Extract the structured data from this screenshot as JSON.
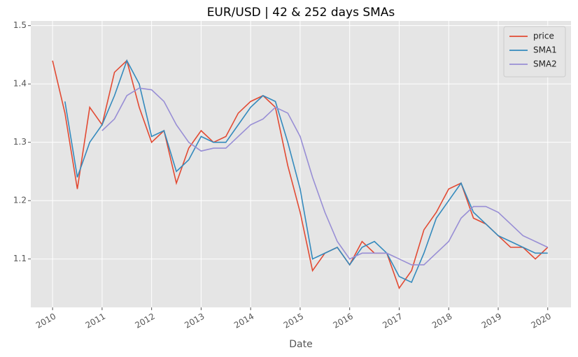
{
  "chart_data": {
    "type": "line",
    "title": "EUR/USD | 42 & 252 days SMAs",
    "xlabel": "Date",
    "x": [
      2010,
      2010.25,
      2010.5,
      2010.75,
      2011,
      2011.25,
      2011.5,
      2011.75,
      2012,
      2012.25,
      2012.5,
      2012.75,
      2013,
      2013.25,
      2013.5,
      2013.75,
      2014,
      2014.25,
      2014.5,
      2014.75,
      2015,
      2015.25,
      2015.5,
      2015.75,
      2016,
      2016.25,
      2016.5,
      2016.75,
      2017,
      2017.25,
      2017.5,
      2017.75,
      2018,
      2018.25,
      2018.5,
      2018.75,
      2019,
      2019.25,
      2019.5,
      2019.75,
      2020
    ],
    "series": [
      {
        "name": "price",
        "color": "#e24a33",
        "values": [
          1.44,
          1.35,
          1.22,
          1.36,
          1.33,
          1.42,
          1.44,
          1.36,
          1.3,
          1.32,
          1.23,
          1.29,
          1.32,
          1.3,
          1.31,
          1.35,
          1.37,
          1.38,
          1.36,
          1.26,
          1.18,
          1.08,
          1.11,
          1.12,
          1.09,
          1.13,
          1.11,
          1.11,
          1.05,
          1.08,
          1.15,
          1.18,
          1.22,
          1.23,
          1.17,
          1.16,
          1.14,
          1.12,
          1.12,
          1.1,
          1.12
        ]
      },
      {
        "name": "SMA1",
        "color": "#348abd",
        "values": [
          null,
          1.37,
          1.24,
          1.3,
          1.33,
          1.38,
          1.44,
          1.4,
          1.31,
          1.32,
          1.25,
          1.27,
          1.31,
          1.3,
          1.3,
          1.33,
          1.36,
          1.38,
          1.37,
          1.3,
          1.22,
          1.1,
          1.11,
          1.12,
          1.09,
          1.12,
          1.13,
          1.11,
          1.07,
          1.06,
          1.11,
          1.17,
          1.2,
          1.23,
          1.18,
          1.16,
          1.14,
          1.13,
          1.12,
          1.11,
          1.11
        ]
      },
      {
        "name": "SMA2",
        "color": "#988ed5",
        "values": [
          null,
          null,
          null,
          null,
          1.32,
          1.34,
          1.38,
          1.393,
          1.39,
          1.37,
          1.33,
          1.3,
          1.285,
          1.29,
          1.29,
          1.31,
          1.33,
          1.34,
          1.36,
          1.35,
          1.31,
          1.24,
          1.18,
          1.13,
          1.1,
          1.11,
          1.11,
          1.11,
          1.1,
          1.09,
          1.09,
          1.11,
          1.13,
          1.17,
          1.19,
          1.19,
          1.18,
          1.16,
          1.14,
          1.13,
          1.12
        ]
      }
    ],
    "xlim": [
      2009.56,
      2020.47
    ],
    "xticks": [
      2010,
      2011,
      2012,
      2013,
      2014,
      2015,
      2016,
      2017,
      2018,
      2019,
      2020
    ],
    "ylim": [
      1.017,
      1.508
    ],
    "yticks": [
      1.1,
      1.2,
      1.3,
      1.4,
      1.5
    ],
    "grid": true,
    "legend": "upper right"
  }
}
